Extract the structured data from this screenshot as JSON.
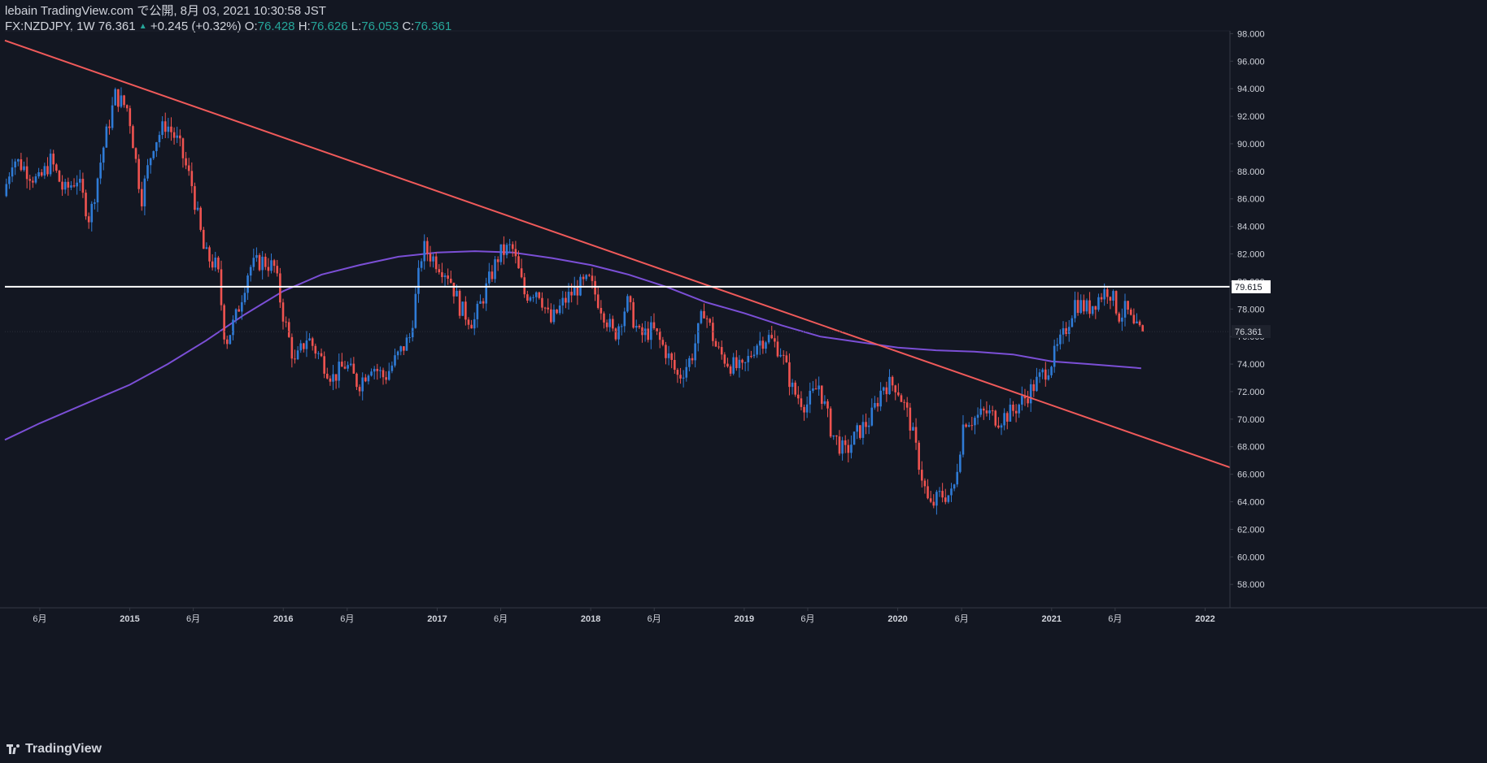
{
  "header": {
    "published": "lebain TradingView.com で公開, 8月 03, 2021 10:30:58 JST",
    "symbol": "FX:NZDJPY, 1W 76.361",
    "change": "+0.245 (+0.32%)",
    "o_label": "O:",
    "o_value": "76.428",
    "h_label": "H:",
    "h_value": "76.626",
    "l_label": "L:",
    "l_value": "76.053",
    "c_label": "C:",
    "c_value": "76.361"
  },
  "logo": {
    "text": "TradingView",
    "icon": "tradingview-logo-icon"
  },
  "colors": {
    "background": "#131722",
    "up": "#2f7bd6",
    "down": "#ef5350",
    "trendline": "#f05a5a",
    "ma": "#7b4fd6",
    "hline": "#ffffff",
    "axis_text": "#d1d4dc"
  },
  "chart_data": {
    "type": "candlestick",
    "x_axis": {
      "type": "date",
      "range": [
        "2014-03-10",
        "2022-03-01"
      ],
      "ticks": [
        {
          "date": "2014-06-01",
          "label": "6月"
        },
        {
          "date": "2015-01-01",
          "label": "2015"
        },
        {
          "date": "2015-06-01",
          "label": "6月"
        },
        {
          "date": "2016-01-01",
          "label": "2016"
        },
        {
          "date": "2016-06-01",
          "label": "6月"
        },
        {
          "date": "2017-01-01",
          "label": "2017"
        },
        {
          "date": "2017-06-01",
          "label": "6月"
        },
        {
          "date": "2018-01-01",
          "label": "2018"
        },
        {
          "date": "2018-06-01",
          "label": "6月"
        },
        {
          "date": "2019-01-01",
          "label": "2019"
        },
        {
          "date": "2019-06-01",
          "label": "6月"
        },
        {
          "date": "2020-01-01",
          "label": "2020"
        },
        {
          "date": "2020-06-01",
          "label": "6月"
        },
        {
          "date": "2021-01-01",
          "label": "2021"
        },
        {
          "date": "2021-06-01",
          "label": "6月"
        },
        {
          "date": "2022-01-01",
          "label": "2022"
        }
      ]
    },
    "y_axis": {
      "range": [
        56.3,
        98.2
      ],
      "ticks": [
        "58.000",
        "60.000",
        "62.000",
        "64.000",
        "66.000",
        "68.000",
        "70.000",
        "72.000",
        "74.000",
        "76.000",
        "78.000",
        "80.000",
        "82.000",
        "84.000",
        "86.000",
        "88.000",
        "90.000",
        "92.000",
        "94.000",
        "96.000",
        "98.000"
      ]
    },
    "price_anchors": [
      [
        "2014-03-10",
        86.2
      ],
      [
        "2014-04-01",
        89.0
      ],
      [
        "2014-05-01",
        88.2
      ],
      [
        "2014-06-01",
        87.2
      ],
      [
        "2014-07-01",
        88.8
      ],
      [
        "2014-08-01",
        86.5
      ],
      [
        "2014-09-01",
        87.5
      ],
      [
        "2014-10-01",
        84.5
      ],
      [
        "2014-11-01",
        89.5
      ],
      [
        "2014-12-01",
        93.5
      ],
      [
        "2015-01-01",
        92.5
      ],
      [
        "2015-02-01",
        86.0
      ],
      [
        "2015-03-01",
        90.0
      ],
      [
        "2015-04-01",
        91.5
      ],
      [
        "2015-05-01",
        90.0
      ],
      [
        "2015-06-01",
        87.0
      ],
      [
        "2015-07-01",
        82.0
      ],
      [
        "2015-08-01",
        81.0
      ],
      [
        "2015-08-20",
        75.5
      ],
      [
        "2015-09-15",
        77.5
      ],
      [
        "2015-10-15",
        81.0
      ],
      [
        "2015-11-15",
        81.5
      ],
      [
        "2015-12-15",
        81.0
      ],
      [
        "2016-01-01",
        78.0
      ],
      [
        "2016-02-01",
        74.0
      ],
      [
        "2016-03-01",
        76.0
      ],
      [
        "2016-04-01",
        74.5
      ],
      [
        "2016-05-01",
        73.0
      ],
      [
        "2016-06-01",
        74.0
      ],
      [
        "2016-07-01",
        72.5
      ],
      [
        "2016-08-01",
        74.0
      ],
      [
        "2016-09-01",
        73.0
      ],
      [
        "2016-10-01",
        74.5
      ],
      [
        "2016-11-01",
        76.0
      ],
      [
        "2016-12-01",
        82.5
      ],
      [
        "2017-01-01",
        81.5
      ],
      [
        "2017-02-01",
        80.5
      ],
      [
        "2017-03-01",
        78.0
      ],
      [
        "2017-04-01",
        77.0
      ],
      [
        "2017-05-01",
        79.5
      ],
      [
        "2017-06-01",
        82.0
      ],
      [
        "2017-07-01",
        82.5
      ],
      [
        "2017-08-01",
        79.0
      ],
      [
        "2017-09-01",
        79.5
      ],
      [
        "2017-10-01",
        77.0
      ],
      [
        "2017-11-01",
        78.5
      ],
      [
        "2017-12-01",
        79.5
      ],
      [
        "2018-01-01",
        80.0
      ],
      [
        "2018-02-01",
        78.0
      ],
      [
        "2018-03-01",
        76.0
      ],
      [
        "2018-04-01",
        78.5
      ],
      [
        "2018-05-01",
        76.0
      ],
      [
        "2018-06-01",
        76.5
      ],
      [
        "2018-07-01",
        75.0
      ],
      [
        "2018-08-01",
        73.0
      ],
      [
        "2018-09-01",
        74.5
      ],
      [
        "2018-10-01",
        78.0
      ],
      [
        "2018-11-01",
        75.0
      ],
      [
        "2018-12-01",
        74.0
      ],
      [
        "2019-01-01",
        73.5
      ],
      [
        "2019-02-01",
        75.5
      ],
      [
        "2019-03-01",
        76.0
      ],
      [
        "2019-04-01",
        75.0
      ],
      [
        "2019-05-01",
        72.0
      ],
      [
        "2019-06-01",
        71.0
      ],
      [
        "2019-07-01",
        72.5
      ],
      [
        "2019-08-01",
        69.0
      ],
      [
        "2019-09-01",
        67.5
      ],
      [
        "2019-10-01",
        69.0
      ],
      [
        "2019-11-01",
        70.0
      ],
      [
        "2019-12-01",
        72.5
      ],
      [
        "2020-01-01",
        72.5
      ],
      [
        "2020-02-01",
        70.0
      ],
      [
        "2020-03-01",
        66.0
      ],
      [
        "2020-03-20",
        63.5
      ],
      [
        "2020-04-15",
        64.5
      ],
      [
        "2020-05-15",
        64.5
      ],
      [
        "2020-06-10",
        70.0
      ],
      [
        "2020-07-01",
        70.0
      ],
      [
        "2020-08-01",
        70.5
      ],
      [
        "2020-09-01",
        70.0
      ],
      [
        "2020-10-01",
        70.5
      ],
      [
        "2020-11-01",
        71.5
      ],
      [
        "2021-01-01",
        74.0
      ],
      [
        "2021-02-01",
        76.0
      ],
      [
        "2021-03-01",
        78.5
      ],
      [
        "2021-04-01",
        78.0
      ],
      [
        "2021-05-01",
        79.0
      ],
      [
        "2021-05-20",
        79.5
      ],
      [
        "2021-06-15",
        77.5
      ],
      [
        "2021-07-01",
        78.0
      ],
      [
        "2021-07-20",
        76.5
      ],
      [
        "2021-08-02",
        76.361
      ]
    ],
    "moving_average": [
      [
        "2014-03-10",
        68.5
      ],
      [
        "2014-06-01",
        69.7
      ],
      [
        "2014-10-01",
        71.3
      ],
      [
        "2015-01-01",
        72.5
      ],
      [
        "2015-04-01",
        74.0
      ],
      [
        "2015-07-01",
        75.7
      ],
      [
        "2015-10-01",
        77.6
      ],
      [
        "2016-01-01",
        79.3
      ],
      [
        "2016-04-01",
        80.5
      ],
      [
        "2016-07-01",
        81.2
      ],
      [
        "2016-10-01",
        81.8
      ],
      [
        "2017-01-01",
        82.1
      ],
      [
        "2017-04-01",
        82.2
      ],
      [
        "2017-07-01",
        82.1
      ],
      [
        "2017-10-01",
        81.7
      ],
      [
        "2018-01-01",
        81.2
      ],
      [
        "2018-04-01",
        80.5
      ],
      [
        "2018-07-01",
        79.6
      ],
      [
        "2018-10-01",
        78.5
      ],
      [
        "2019-01-01",
        77.7
      ],
      [
        "2019-04-01",
        76.8
      ],
      [
        "2019-07-01",
        76.0
      ],
      [
        "2019-10-01",
        75.6
      ],
      [
        "2020-01-01",
        75.2
      ],
      [
        "2020-04-01",
        75.0
      ],
      [
        "2020-07-01",
        74.9
      ],
      [
        "2020-10-01",
        74.7
      ],
      [
        "2021-01-01",
        74.2
      ],
      [
        "2021-04-01",
        74.0
      ],
      [
        "2021-08-02",
        73.7
      ]
    ],
    "trendline": {
      "start": [
        "2014-03-10",
        97.5
      ],
      "end": [
        "2022-03-01",
        66.5
      ]
    },
    "horizontal_line": {
      "value": 79.615,
      "label": "79.615"
    },
    "last_price": {
      "value": 76.361,
      "label": "76.361"
    }
  }
}
